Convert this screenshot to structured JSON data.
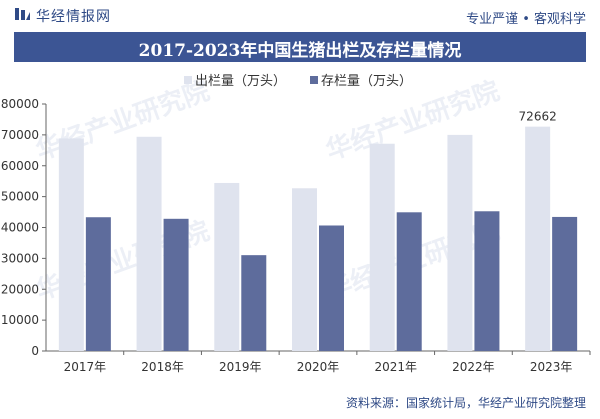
{
  "header": {
    "brand_name": "华经情报网",
    "slogan": "专业严谨 • 客观科学"
  },
  "title": "2017-2023年中国生猪出栏及存栏量情况",
  "footer": {
    "source": "资料来源：国家统计局，华经产业研究院整理"
  },
  "watermark": {
    "text": "华经产业研究院"
  },
  "colors": {
    "header_blue": "#2f4a86",
    "title_bg": "#3c5594",
    "series_out": "#dfe3ee",
    "series_stock": "#5e6c9c"
  },
  "chart_data": {
    "type": "bar",
    "categories": [
      "2017年",
      "2018年",
      "2019年",
      "2020年",
      "2021年",
      "2022年",
      "2023年"
    ],
    "series": [
      {
        "name": "出栏量（万头）",
        "values": [
          68861,
          69382,
          54419,
          52704,
          67128,
          69995,
          72662
        ]
      },
      {
        "name": "存栏量（万头）",
        "values": [
          43325,
          42817,
          31041,
          40650,
          44922,
          45256,
          43422
        ]
      }
    ],
    "data_labels": [
      {
        "series": 0,
        "index": 6,
        "text": "72662"
      }
    ],
    "ylim": [
      0,
      80000
    ],
    "yticks": [
      "0",
      "10000",
      "20000",
      "30000",
      "40000",
      "50000",
      "60000",
      "70000",
      "80000"
    ],
    "legend_position": "top-left",
    "grid": false
  }
}
